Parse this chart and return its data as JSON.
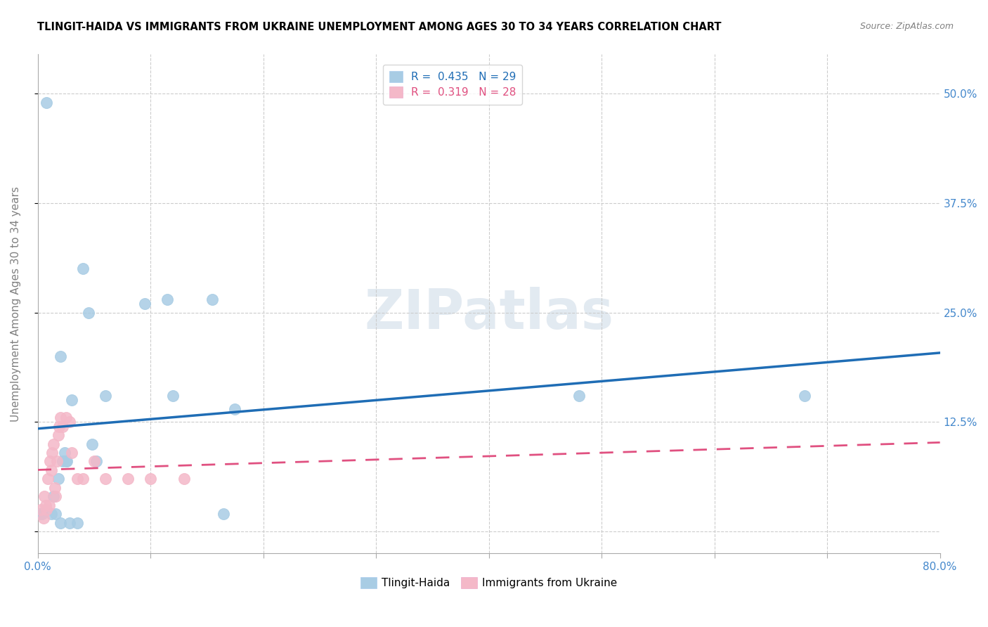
{
  "title": "TLINGIT-HAIDA VS IMMIGRANTS FROM UKRAINE UNEMPLOYMENT AMONG AGES 30 TO 34 YEARS CORRELATION CHART",
  "source": "Source: ZipAtlas.com",
  "ylabel": "Unemployment Among Ages 30 to 34 years",
  "y_ticks": [
    0.0,
    0.125,
    0.25,
    0.375,
    0.5
  ],
  "y_tick_labels": [
    "",
    "12.5%",
    "25.0%",
    "37.5%",
    "50.0%"
  ],
  "x_range": [
    0.0,
    0.8
  ],
  "y_range": [
    -0.025,
    0.545
  ],
  "legend_blue_r": "0.435",
  "legend_blue_n": "29",
  "legend_pink_r": "0.319",
  "legend_pink_n": "28",
  "tlingit_x": [
    0.002,
    0.004,
    0.008,
    0.012,
    0.014,
    0.016,
    0.018,
    0.02,
    0.022,
    0.024,
    0.026,
    0.028,
    0.03,
    0.035,
    0.04,
    0.045,
    0.048,
    0.052,
    0.095,
    0.115,
    0.12,
    0.155,
    0.165,
    0.175,
    0.48,
    0.68,
    0.02,
    0.025,
    0.06
  ],
  "tlingit_y": [
    0.02,
    0.02,
    0.49,
    0.02,
    0.04,
    0.02,
    0.06,
    0.01,
    0.08,
    0.09,
    0.08,
    0.01,
    0.15,
    0.01,
    0.3,
    0.25,
    0.1,
    0.08,
    0.26,
    0.265,
    0.155,
    0.265,
    0.02,
    0.14,
    0.155,
    0.155,
    0.2,
    0.08,
    0.155
  ],
  "ukraine_x": [
    0.003,
    0.005,
    0.006,
    0.007,
    0.008,
    0.009,
    0.01,
    0.011,
    0.012,
    0.013,
    0.014,
    0.015,
    0.016,
    0.017,
    0.018,
    0.019,
    0.02,
    0.022,
    0.025,
    0.028,
    0.03,
    0.035,
    0.04,
    0.05,
    0.06,
    0.08,
    0.1,
    0.13
  ],
  "ukraine_y": [
    0.025,
    0.015,
    0.04,
    0.03,
    0.025,
    0.06,
    0.03,
    0.08,
    0.07,
    0.09,
    0.1,
    0.05,
    0.04,
    0.08,
    0.11,
    0.12,
    0.13,
    0.12,
    0.13,
    0.125,
    0.09,
    0.06,
    0.06,
    0.08,
    0.06,
    0.06,
    0.06,
    0.06
  ],
  "blue_color": "#a8cce4",
  "pink_color": "#f4b8c8",
  "blue_line_color": "#1f6db5",
  "pink_line_color": "#e05080",
  "background_color": "#ffffff",
  "watermark_text": "ZIPatlas",
  "grid_color": "#cccccc",
  "blue_text_color": "#4488cc",
  "axis_color": "#aaaaaa"
}
